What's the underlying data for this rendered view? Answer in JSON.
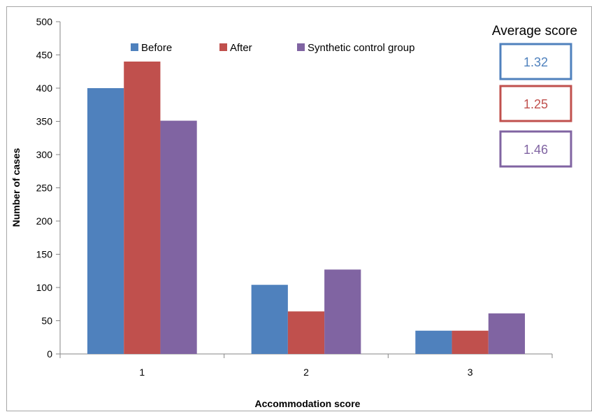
{
  "chart_data": {
    "type": "bar",
    "categories": [
      "1",
      "2",
      "3"
    ],
    "series": [
      {
        "name": "Before",
        "values": [
          400,
          104,
          35
        ],
        "color": "#4F81BD"
      },
      {
        "name": "After",
        "values": [
          440,
          64,
          35
        ],
        "color": "#C0504D"
      },
      {
        "name": "Synthetic control group",
        "values": [
          351,
          127,
          61
        ],
        "color": "#8064A2"
      }
    ],
    "xlabel": "Accommodation score",
    "ylabel": "Number of cases",
    "ylim": [
      0,
      500
    ],
    "yticks": [
      0,
      50,
      100,
      150,
      200,
      250,
      300,
      350,
      400,
      450,
      500
    ],
    "grid": false,
    "legend_position": "top",
    "annotation": {
      "title": "Average score",
      "values": [
        {
          "series": "Before",
          "text": "1.32"
        },
        {
          "series": "After",
          "text": "1.25"
        },
        {
          "series": "Synthetic control group",
          "text": "1.46"
        }
      ]
    }
  }
}
